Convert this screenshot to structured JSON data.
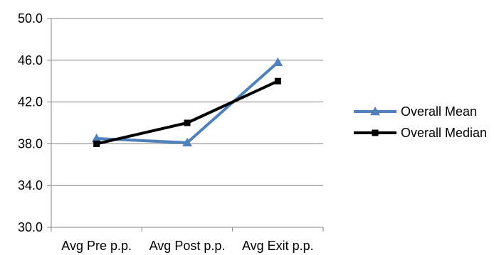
{
  "chart_data": {
    "type": "line",
    "categories": [
      "Avg Pre p.p.",
      "Avg Post p.p.",
      "Avg Exit p.p."
    ],
    "ylim": [
      30.0,
      50.0
    ],
    "yticks": [
      "30.0",
      "34.0",
      "38.0",
      "42.0",
      "46.0",
      "50.0"
    ],
    "grid": "horizontal",
    "legend": "right",
    "series": [
      {
        "name": "Overall Mean",
        "values": [
          38.5,
          38.1,
          45.8
        ],
        "color": "#4f81bd",
        "marker": "triangle"
      },
      {
        "name": "Overall Median",
        "values": [
          38.0,
          40.0,
          44.0
        ],
        "color": "#000000",
        "marker": "square"
      }
    ]
  }
}
